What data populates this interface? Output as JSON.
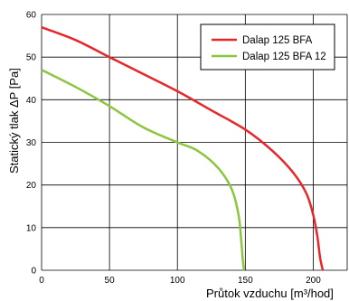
{
  "chart_data": {
    "type": "line",
    "xlabel": "Průtok vzduchu [m³/hod]",
    "ylabel": "Statický tlak ΔP [Pa]",
    "xlim": [
      0,
      225
    ],
    "ylim": [
      0,
      60
    ],
    "x_ticks": [
      "0",
      "50",
      "100",
      "150",
      "200"
    ],
    "y_ticks": [
      "0",
      "10",
      "20",
      "30",
      "40",
      "50",
      "60"
    ],
    "grid": true,
    "legend_position": "top-right",
    "series": [
      {
        "name": "Dalap 125 BFA",
        "color": "#e8262a",
        "points": [
          [
            0,
            57
          ],
          [
            25,
            54
          ],
          [
            50,
            50
          ],
          [
            75,
            46
          ],
          [
            100,
            42
          ],
          [
            125,
            37.5
          ],
          [
            150,
            33
          ],
          [
            170,
            28
          ],
          [
            185,
            23
          ],
          [
            195,
            18
          ],
          [
            200,
            13
          ],
          [
            203,
            8
          ],
          [
            205,
            3
          ],
          [
            207,
            0
          ]
        ]
      },
      {
        "name": "Dalap 125 BFA 12",
        "color": "#8cc63f",
        "points": [
          [
            0,
            47
          ],
          [
            25,
            43
          ],
          [
            50,
            38.5
          ],
          [
            75,
            33.5
          ],
          [
            100,
            30
          ],
          [
            115,
            28
          ],
          [
            130,
            24
          ],
          [
            140,
            19
          ],
          [
            145,
            13
          ],
          [
            147,
            7
          ],
          [
            148,
            3
          ],
          [
            149,
            0
          ]
        ]
      }
    ]
  }
}
